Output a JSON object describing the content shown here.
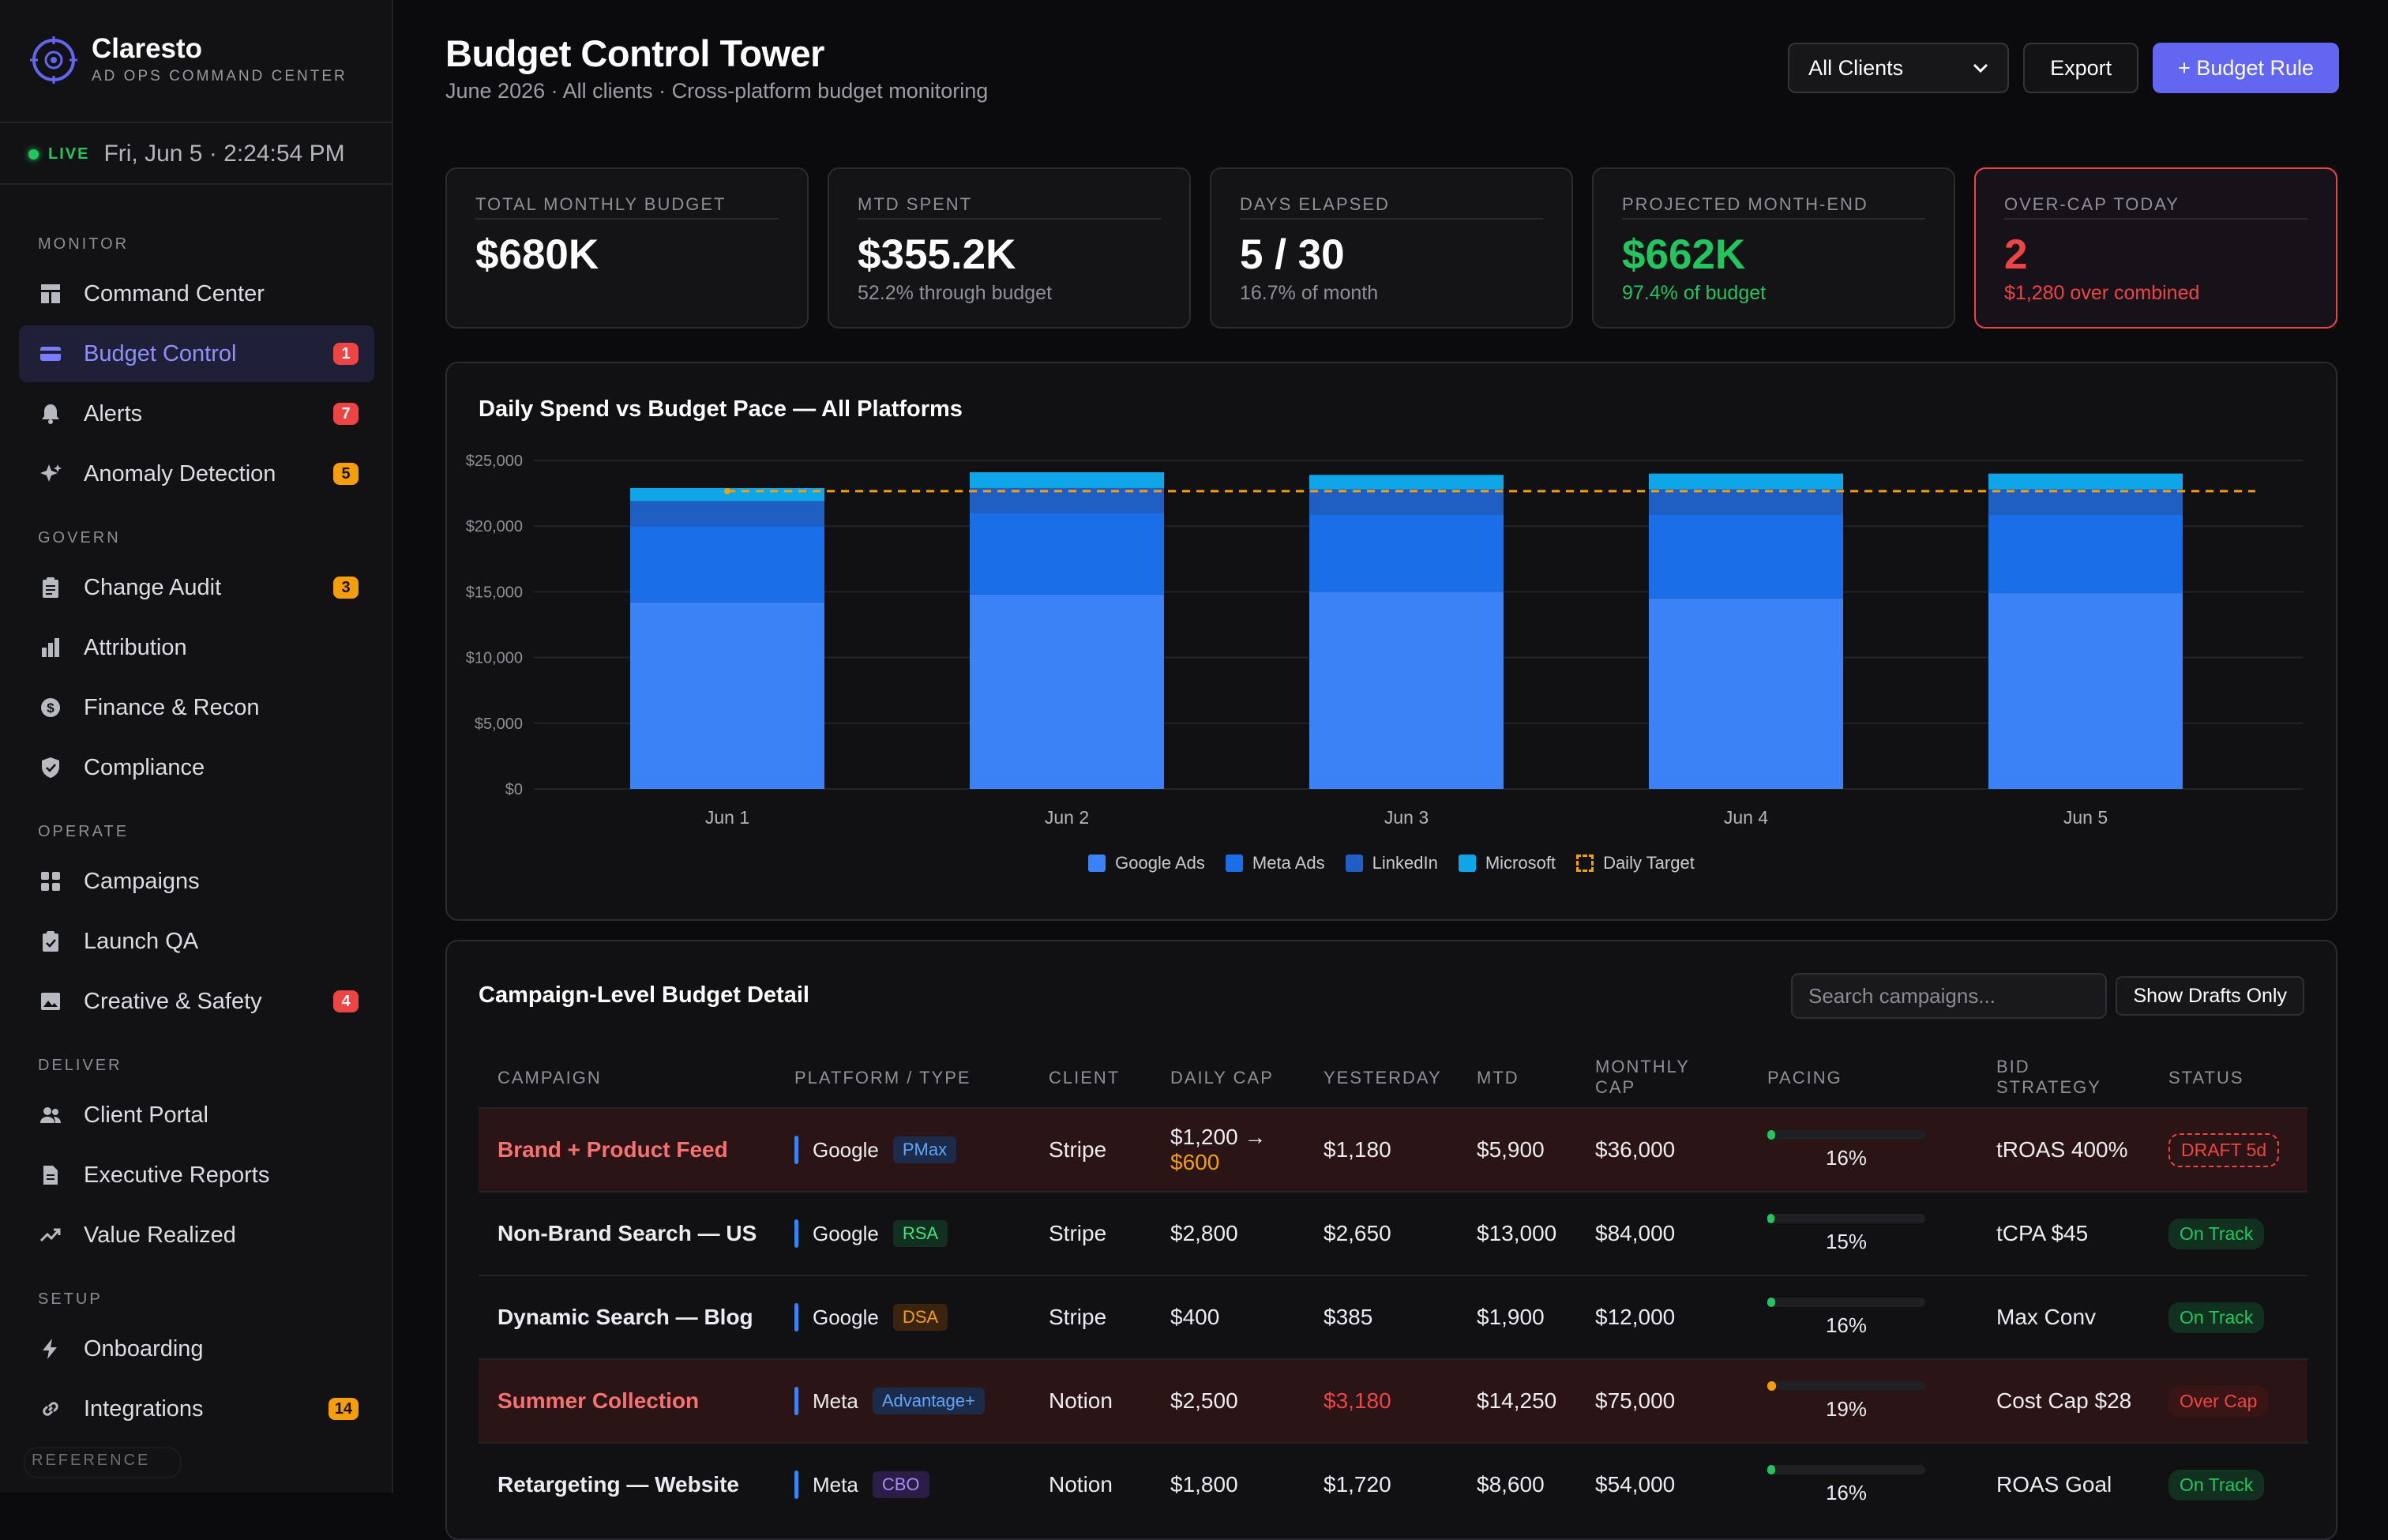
{
  "brand": {
    "name": "Claresto",
    "subtitle": "AD OPS COMMAND CENTER"
  },
  "live": {
    "label": "LIVE",
    "time": "Fri, Jun 5 · 2:24:54 PM"
  },
  "nav": {
    "sections": [
      "MONITOR",
      "GOVERN",
      "OPERATE",
      "DELIVER",
      "SETUP"
    ],
    "items": [
      {
        "label": "Command Center",
        "icon": "dashboard-icon"
      },
      {
        "label": "Budget Control",
        "icon": "credit-card-icon",
        "badge": "1",
        "active": true
      },
      {
        "label": "Alerts",
        "icon": "bell-icon",
        "badge": "7"
      },
      {
        "label": "Anomaly Detection",
        "icon": "sparkle-icon",
        "badge": "5"
      },
      {
        "label": "Change Audit",
        "icon": "clipboard-icon",
        "badge": "3"
      },
      {
        "label": "Attribution",
        "icon": "bar-chart-icon"
      },
      {
        "label": "Finance & Recon",
        "icon": "dollar-circle-icon"
      },
      {
        "label": "Compliance",
        "icon": "shield-icon"
      },
      {
        "label": "Campaigns",
        "icon": "grid-icon"
      },
      {
        "label": "Launch QA",
        "icon": "checklist-icon"
      },
      {
        "label": "Creative & Safety",
        "icon": "image-icon",
        "badge": "4"
      },
      {
        "label": "Client Portal",
        "icon": "users-icon"
      },
      {
        "label": "Executive Reports",
        "icon": "document-icon"
      },
      {
        "label": "Value Realized",
        "icon": "trending-up-icon"
      },
      {
        "label": "Onboarding",
        "icon": "lightning-icon"
      },
      {
        "label": "Integrations",
        "icon": "link-icon",
        "badge": "14"
      }
    ],
    "footer_label": "REFERENCE"
  },
  "header": {
    "title": "Budget Control Tower",
    "subtitle": "June 2026 · All clients · Cross-platform budget monitoring",
    "client_select": "All Clients",
    "export_label": "Export",
    "add_rule_label": "+ Budget Rule"
  },
  "kpis": [
    {
      "label": "TOTAL MONTHLY BUDGET",
      "value": "$680K",
      "sub": ""
    },
    {
      "label": "MTD SPENT",
      "value": "$355.2K",
      "sub": "52.2% through budget"
    },
    {
      "label": "DAYS ELAPSED",
      "value": "5 / 30",
      "sub": "16.7% of month"
    },
    {
      "label": "PROJECTED MONTH-END",
      "value": "$662K",
      "sub": "97.4% of budget"
    },
    {
      "label": "OVER-CAP TODAY",
      "value": "2",
      "sub": "$1,280 over combined"
    }
  ],
  "colors": {
    "accent": "#6366f1",
    "google": "#3b82f6",
    "meta": "#1a6fe8",
    "linkedin": "#1f5fc4",
    "microsoft": "#0ea5e9",
    "target": "#f59e0b"
  },
  "chart_data": {
    "type": "bar",
    "stacked": true,
    "title": "Daily Spend vs Budget Pace — All Platforms",
    "categories": [
      "Jun 1",
      "Jun 2",
      "Jun 3",
      "Jun 4",
      "Jun 5"
    ],
    "series": [
      {
        "name": "Google Ads",
        "values": [
          14200,
          14800,
          15000,
          14500,
          14900
        ]
      },
      {
        "name": "Meta Ads",
        "values": [
          5800,
          6200,
          5900,
          6400,
          6000
        ]
      },
      {
        "name": "LinkedIn",
        "values": [
          1900,
          1900,
          1900,
          1900,
          1900
        ]
      },
      {
        "name": "Microsoft",
        "values": [
          1000,
          1200,
          1100,
          1200,
          1200
        ]
      }
    ],
    "target": {
      "name": "Daily Target",
      "value": 22667
    },
    "y_ticks": [
      "$0",
      "$5,000",
      "$10,000",
      "$15,000",
      "$20,000",
      "$25,000"
    ],
    "ylim": [
      0,
      25000
    ],
    "grid": true,
    "legend_position": "bottom-center"
  },
  "table": {
    "title": "Campaign-Level Budget Detail",
    "search_placeholder": "Search campaigns...",
    "toggle_label": "Show Drafts Only",
    "headers": [
      "CAMPAIGN",
      "PLATFORM / TYPE",
      "CLIENT",
      "DAILY CAP",
      "YESTERDAY",
      "MTD",
      "MONTHLY CAP",
      "PACING",
      "BID STRATEGY",
      "STATUS"
    ],
    "rows": [
      {
        "campaign": "Brand + Product Feed",
        "platform": "Google",
        "type": "PMax",
        "client": "Stripe",
        "daily_cap": "$1,200 →",
        "daily_cap_new": "$600",
        "yesterday": "$1,180",
        "mtd": "$5,900",
        "monthly_cap": "$36,000",
        "pacing": 16,
        "pacing_label": "16%",
        "bid": "tROAS 400%",
        "status": "DRAFT 5d"
      },
      {
        "campaign": "Non-Brand Search — US",
        "platform": "Google",
        "type": "RSA",
        "client": "Stripe",
        "daily_cap": "$2,800",
        "yesterday": "$2,650",
        "mtd": "$13,000",
        "monthly_cap": "$84,000",
        "pacing": 15,
        "pacing_label": "15%",
        "bid": "tCPA $45",
        "status": "On Track"
      },
      {
        "campaign": "Dynamic Search — Blog",
        "platform": "Google",
        "type": "DSA",
        "client": "Stripe",
        "daily_cap": "$400",
        "yesterday": "$385",
        "mtd": "$1,900",
        "monthly_cap": "$12,000",
        "pacing": 16,
        "pacing_label": "16%",
        "bid": "Max Conv",
        "status": "On Track"
      },
      {
        "campaign": "Summer Collection",
        "platform": "Meta",
        "type": "Advantage+",
        "client": "Notion",
        "daily_cap": "$2,500",
        "yesterday": "$3,180",
        "mtd": "$14,250",
        "monthly_cap": "$75,000",
        "pacing": 19,
        "pacing_label": "19%",
        "bid": "Cost Cap $28",
        "status": "Over Cap"
      },
      {
        "campaign": "Retargeting — Website",
        "platform": "Meta",
        "type": "CBO",
        "client": "Notion",
        "daily_cap": "$1,800",
        "yesterday": "$1,720",
        "mtd": "$8,600",
        "monthly_cap": "$54,000",
        "pacing": 16,
        "pacing_label": "16%",
        "bid": "ROAS Goal",
        "status": "On Track"
      }
    ]
  }
}
